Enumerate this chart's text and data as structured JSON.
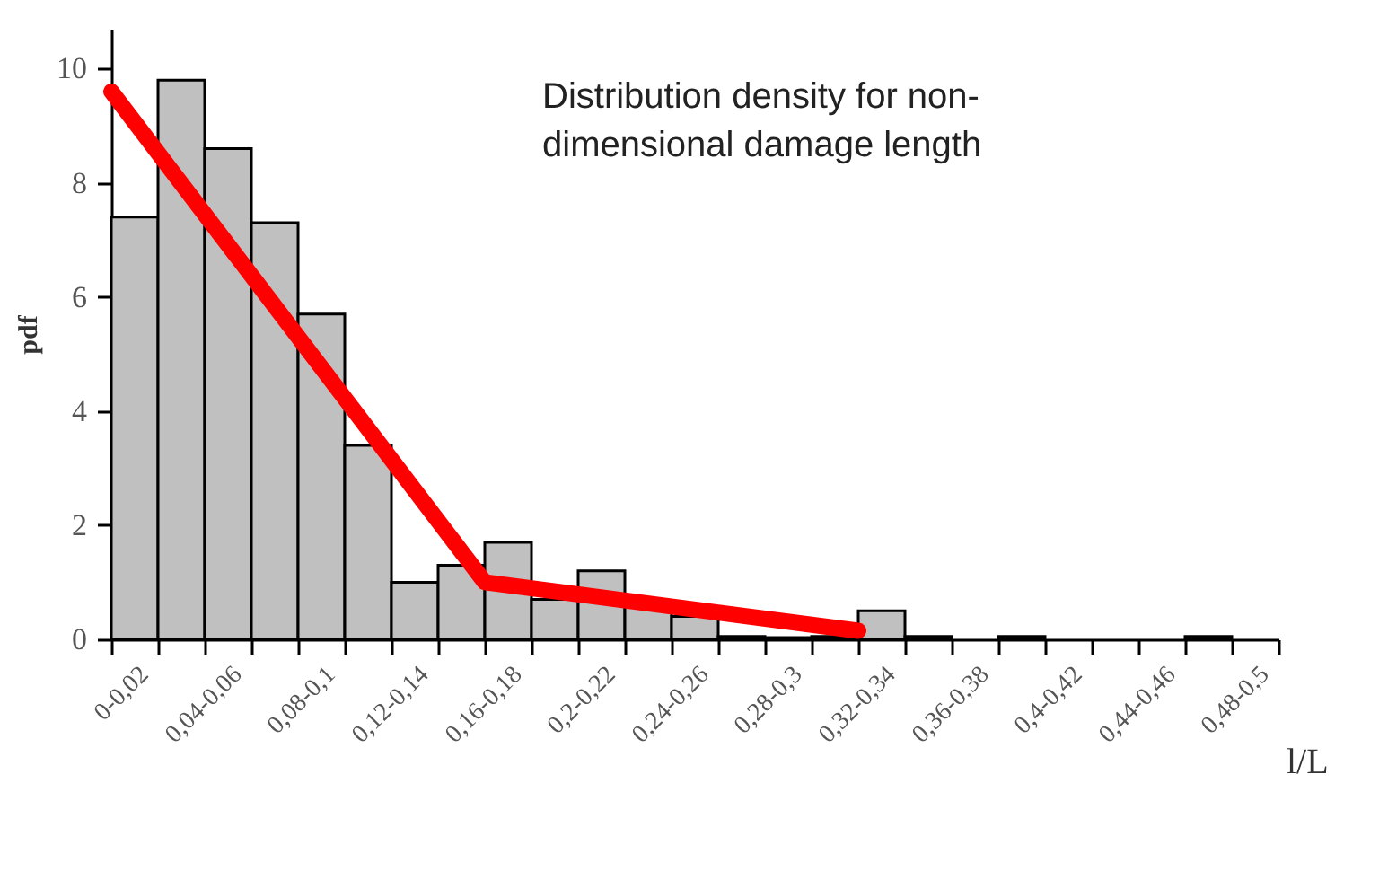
{
  "chart_data": {
    "type": "bar",
    "title": "Distribution density for non-dimensional damage length",
    "xlabel": "l/L",
    "ylabel": "pdf",
    "categories": [
      "0-0,02",
      null,
      "0,04-0,06",
      null,
      "0,08-0,1",
      null,
      "0,12-0,14",
      null,
      "0,16-0,18",
      null,
      "0,2-0,22",
      null,
      "0,24-0,26",
      null,
      "0,28-0,3",
      null,
      "0,32-0,34",
      null,
      "0,36-0,38",
      null,
      "0,4-0,42",
      null,
      "0,44-0,46",
      null,
      "0,48-0,5"
    ],
    "series": [
      {
        "color": "#c0c0c0",
        "values": [
          7.4,
          9.8,
          8.6,
          7.3,
          5.7,
          3.4,
          1.0,
          1.3,
          1.7,
          0.7,
          1.2,
          0.6,
          0.4,
          0.05,
          0.03,
          0.05,
          0.5,
          0.05,
          0,
          0.05,
          0,
          0,
          0,
          0.05,
          0
        ]
      },
      {
        "type": "line",
        "color": "#ff0000",
        "x": [
          "0-0,02",
          "0,16-0,18",
          "0,32-0,34"
        ],
        "values": [
          9.6,
          1.0,
          0.15
        ]
      }
    ],
    "ylim": [
      0,
      10.7
    ],
    "yticks": [
      0,
      2,
      4,
      6,
      8,
      10
    ],
    "grid": false
  }
}
